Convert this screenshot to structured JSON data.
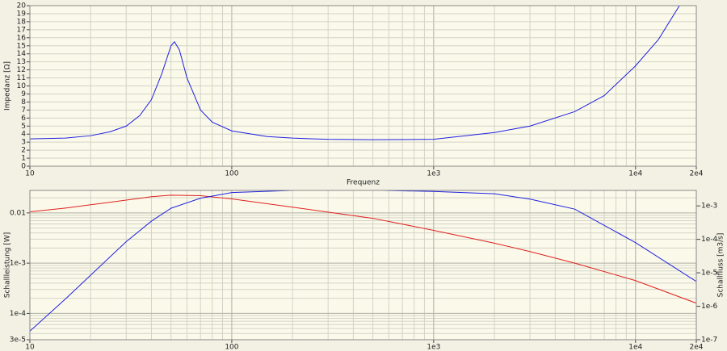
{
  "chart_data": [
    {
      "type": "line",
      "xlabel": "Frequenz",
      "ylabel": "Impedanz [Ω]",
      "xscale": "log",
      "yscale": "linear",
      "grid": true,
      "minor_grid": true,
      "xlim": [
        10,
        20000
      ],
      "ylim": [
        0,
        20
      ],
      "xticks": [
        10,
        100,
        {
          "value": 1000,
          "label": "1e3"
        },
        {
          "value": 10000,
          "label": "1e4"
        },
        {
          "value": 20000,
          "label": "2e4"
        }
      ],
      "yticks": [
        0,
        1,
        2,
        3,
        4,
        5,
        6,
        7,
        8,
        9,
        10,
        11,
        12,
        13,
        14,
        15,
        16,
        17,
        18,
        19,
        20
      ],
      "x": [
        10,
        15,
        20,
        25,
        30,
        35,
        40,
        45,
        50,
        52,
        55,
        60,
        70,
        80,
        100,
        150,
        200,
        300,
        500,
        1000,
        2000,
        3000,
        5000,
        7000,
        10000,
        13000,
        16500
      ],
      "series": [
        {
          "color": "#2020e0",
          "values": [
            3.4,
            3.5,
            3.8,
            4.3,
            5.0,
            6.3,
            8.3,
            11.5,
            15.0,
            15.5,
            14.5,
            11,
            7,
            5.5,
            4.4,
            3.7,
            3.5,
            3.35,
            3.3,
            3.35,
            4.2,
            5.0,
            6.8,
            8.8,
            12.5,
            15.8,
            20
          ]
        }
      ]
    },
    {
      "type": "line",
      "ylabel": "Schallleistung [W]",
      "y2label": "Schallfluss [m3/s]",
      "xscale": "log",
      "yscale": "log",
      "y2scale": "log",
      "grid": true,
      "minor_grid": true,
      "xlim": [
        10,
        20000
      ],
      "ylim": [
        3e-05,
        0.028
      ],
      "y2lim": [
        1e-07,
        0.0029
      ],
      "xticks": [
        10,
        100,
        {
          "value": 1000,
          "label": "1e3"
        },
        {
          "value": 10000,
          "label": "1e4"
        },
        {
          "value": 20000,
          "label": "2e4"
        }
      ],
      "yticks": [
        {
          "value": 3e-05,
          "label": "3e-5"
        },
        {
          "value": 0.0001,
          "label": "1e-4"
        },
        {
          "value": 0.001,
          "label": "1e-3"
        },
        0.01
      ],
      "y2ticks": [
        {
          "value": 1e-07,
          "label": "1e-7"
        },
        {
          "value": 1e-06,
          "label": "1e-6"
        },
        {
          "value": 1e-05,
          "label": "1e-5"
        },
        {
          "value": 0.0001,
          "label": "1e-4"
        },
        {
          "value": 0.001,
          "label": "1e-3"
        }
      ],
      "x": [
        10,
        15,
        20,
        30,
        40,
        50,
        70,
        100,
        200,
        500,
        1000,
        2000,
        3000,
        5000,
        10000,
        20000
      ],
      "series": [
        {
          "color": "#e02020",
          "values": [
            0.0105,
            0.0125,
            0.0145,
            0.018,
            0.021,
            0.0225,
            0.022,
            0.019,
            0.013,
            0.0078,
            0.0045,
            0.0025,
            0.0017,
            0.001,
            0.00045,
            0.00016
          ]
        },
        {
          "color": "#2020e0",
          "axis": "y2",
          "values": [
            1.8e-07,
            1.65e-06,
            8.5e-06,
            8.5e-05,
            0.00035,
            0.00085,
            0.0017,
            0.0025,
            0.0029,
            0.00295,
            0.0027,
            0.0023,
            0.0016,
            0.0008,
            8e-05,
            5.5e-06
          ]
        }
      ]
    }
  ]
}
